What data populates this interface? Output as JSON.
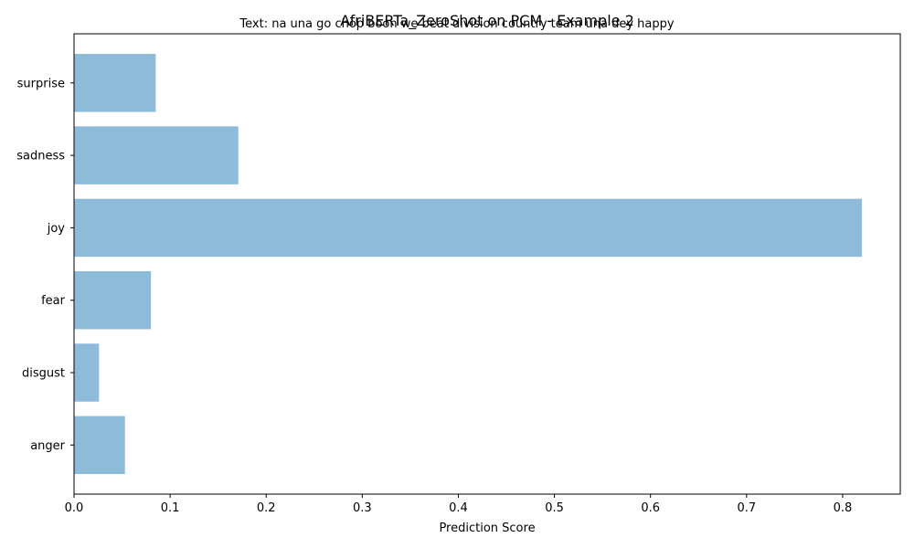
{
  "chart_data": {
    "type": "bar",
    "orientation": "horizontal",
    "title": "AfriBERTa_ZeroShot on PCM - Example 2",
    "subtitle": "Text: na una go chop boon we beat division country team una dey happy",
    "xlabel": "Prediction Score",
    "ylabel": "",
    "categories": [
      "anger",
      "disgust",
      "fear",
      "joy",
      "sadness",
      "surprise"
    ],
    "values": [
      0.053,
      0.026,
      0.08,
      0.82,
      0.171,
      0.085
    ],
    "xlim": [
      0,
      0.86
    ],
    "xticks": [
      "0.0",
      "0.1",
      "0.2",
      "0.3",
      "0.4",
      "0.5",
      "0.6",
      "0.7",
      "0.8"
    ],
    "bar_color": "#8fbbdb",
    "grid": false,
    "legend": "none"
  }
}
